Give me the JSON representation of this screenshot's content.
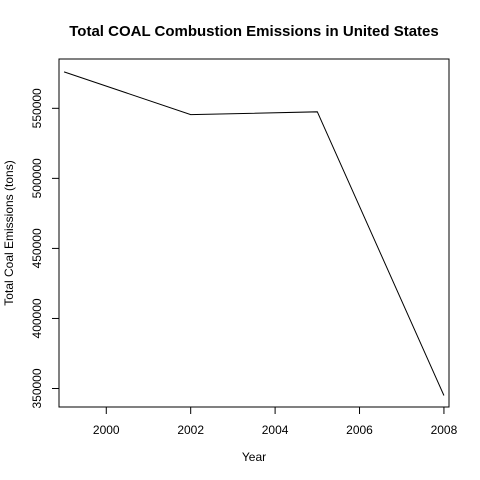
{
  "chart_data": {
    "type": "line",
    "title": "Total COAL Combustion Emissions in United States",
    "xlabel": "Year",
    "ylabel": "Total Coal Emissions (tons)",
    "x": [
      1999,
      2002,
      2005,
      2008
    ],
    "series": [
      {
        "values": [
          576000,
          545500,
          547500,
          345000
        ]
      }
    ],
    "xticks": [
      2000,
      2002,
      2004,
      2006,
      2008
    ],
    "yticks": [
      350000,
      400000,
      450000,
      500000,
      550000
    ],
    "xlim": [
      1998.88,
      2008.12
    ],
    "ylim": [
      336800,
      585200
    ],
    "grid": false,
    "line_color": "#000000"
  }
}
